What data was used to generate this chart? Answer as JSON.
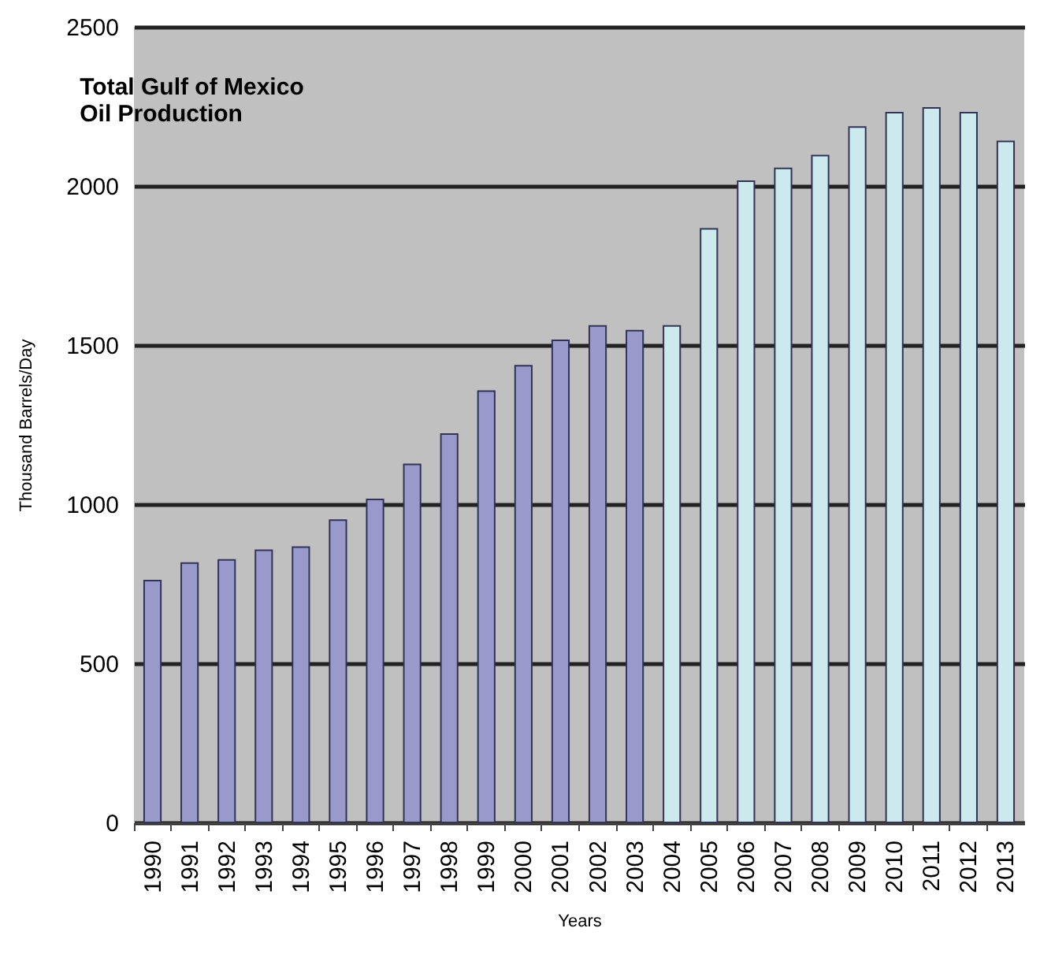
{
  "chart_data": {
    "type": "bar",
    "title": "Total Gulf of Mexico\nOil Production",
    "xlabel": "Years",
    "ylabel": "Thousand Barrels/Day",
    "categories": [
      "1990",
      "1991",
      "1992",
      "1993",
      "1994",
      "1995",
      "1996",
      "1997",
      "1998",
      "1999",
      "2000",
      "2001",
      "2002",
      "2003",
      "2004",
      "2005",
      "2006",
      "2007",
      "2008",
      "2009",
      "2010",
      "2011",
      "2012",
      "2013"
    ],
    "values": [
      760,
      815,
      825,
      855,
      865,
      950,
      1015,
      1125,
      1220,
      1355,
      1435,
      1515,
      1560,
      1545,
      1560,
      1865,
      2015,
      2055,
      2095,
      2185,
      2230,
      2245,
      2230,
      2140
    ],
    "colors": [
      "#9999cc",
      "#9999cc",
      "#9999cc",
      "#9999cc",
      "#9999cc",
      "#9999cc",
      "#9999cc",
      "#9999cc",
      "#9999cc",
      "#9999cc",
      "#9999cc",
      "#9999cc",
      "#9999cc",
      "#9999cc",
      "#cceaee",
      "#cceaee",
      "#cceaee",
      "#cceaee",
      "#cceaee",
      "#cceaee",
      "#cceaee",
      "#cceaee",
      "#cceaee",
      "#cceaee"
    ],
    "ylim": [
      0,
      2500
    ],
    "yticks": [
      0,
      500,
      1000,
      1500,
      2000,
      2500
    ],
    "grid": "y"
  }
}
